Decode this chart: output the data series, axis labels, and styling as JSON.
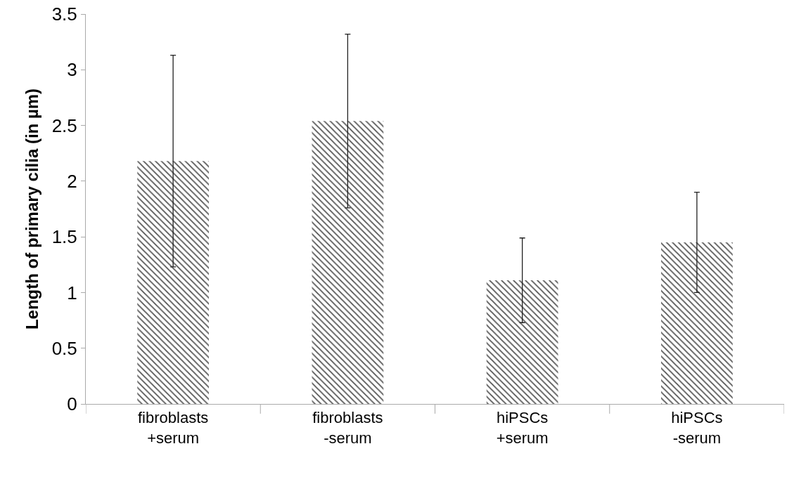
{
  "chart_data": {
    "type": "bar",
    "ylabel": "Length of primary cilia (in µm)",
    "categories": [
      "fibroblasts\n+serum",
      "fibroblasts\n-serum",
      "hiPSCs\n+serum",
      "hiPSCs\n-serum"
    ],
    "values": [
      2.18,
      2.54,
      1.11,
      1.45
    ],
    "errors": [
      0.95,
      0.78,
      0.38,
      0.45
    ],
    "color": "#555555",
    "ylim": [
      0,
      3.5
    ],
    "yticks": [
      0,
      0.5,
      1,
      1.5,
      2,
      2.5,
      3,
      3.5
    ]
  }
}
